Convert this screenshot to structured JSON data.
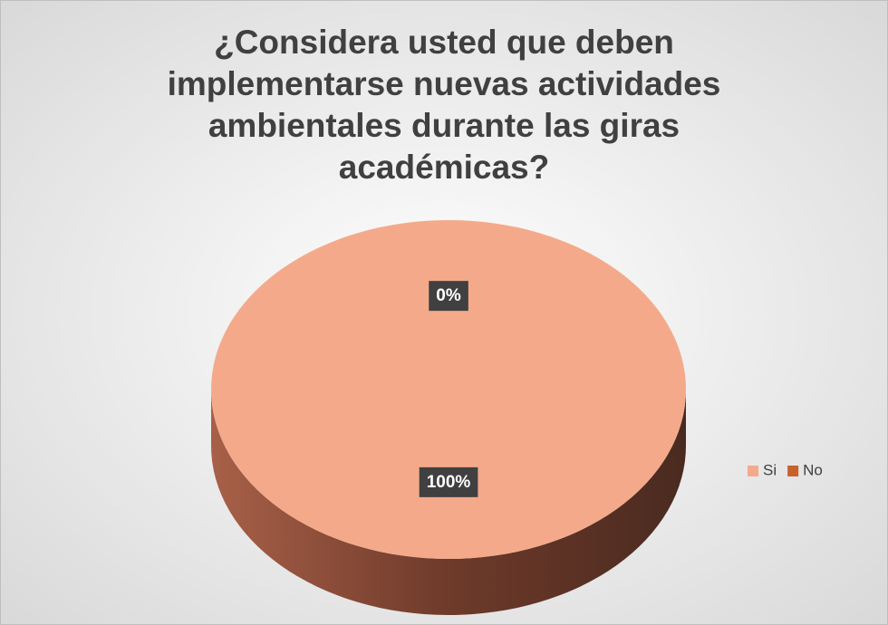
{
  "chart_data": {
    "type": "pie",
    "title": "¿Considera usted que deben implementarse nuevas actividades ambientales durante las giras académicas?",
    "categories": [
      "Si",
      "No"
    ],
    "values": [
      100,
      0
    ],
    "value_labels": [
      "100%",
      "0%"
    ],
    "colors": [
      "#f4aa8a",
      "#c8622a"
    ],
    "legend": "right"
  }
}
